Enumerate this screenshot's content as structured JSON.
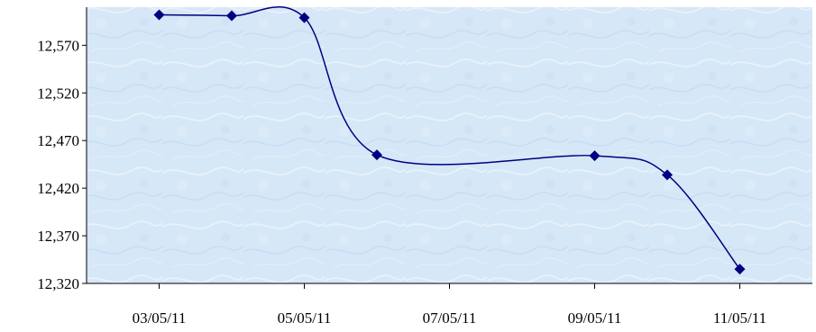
{
  "chart_data": {
    "type": "line",
    "title": "",
    "xlabel": "",
    "ylabel": "",
    "x_ticks": [
      "03/05/11",
      "05/05/11",
      "07/05/11",
      "09/05/11",
      "11/05/11"
    ],
    "x_range": [
      "2011-05-02",
      "2011-05-12"
    ],
    "y_ticks": [
      "12,320",
      "12,370",
      "12,420",
      "12,470",
      "12,520",
      "12,570"
    ],
    "ylim": [
      12320,
      12610
    ],
    "grid": false,
    "legend": "none",
    "series": [
      {
        "color": "#000080",
        "marker": "diamond",
        "points": [
          {
            "x": "2011-05-03",
            "y": 12602
          },
          {
            "x": "2011-05-04",
            "y": 12601
          },
          {
            "x": "2011-05-05",
            "y": 12599
          },
          {
            "x": "2011-05-06",
            "y": 12455
          },
          {
            "x": "2011-05-09",
            "y": 12454
          },
          {
            "x": "2011-05-10",
            "y": 12434
          },
          {
            "x": "2011-05-11",
            "y": 12335
          }
        ]
      }
    ],
    "colors": {
      "plot_background": "#d6e7f7",
      "axis": "#000000",
      "line": "#000080",
      "marker": "#000080"
    }
  }
}
